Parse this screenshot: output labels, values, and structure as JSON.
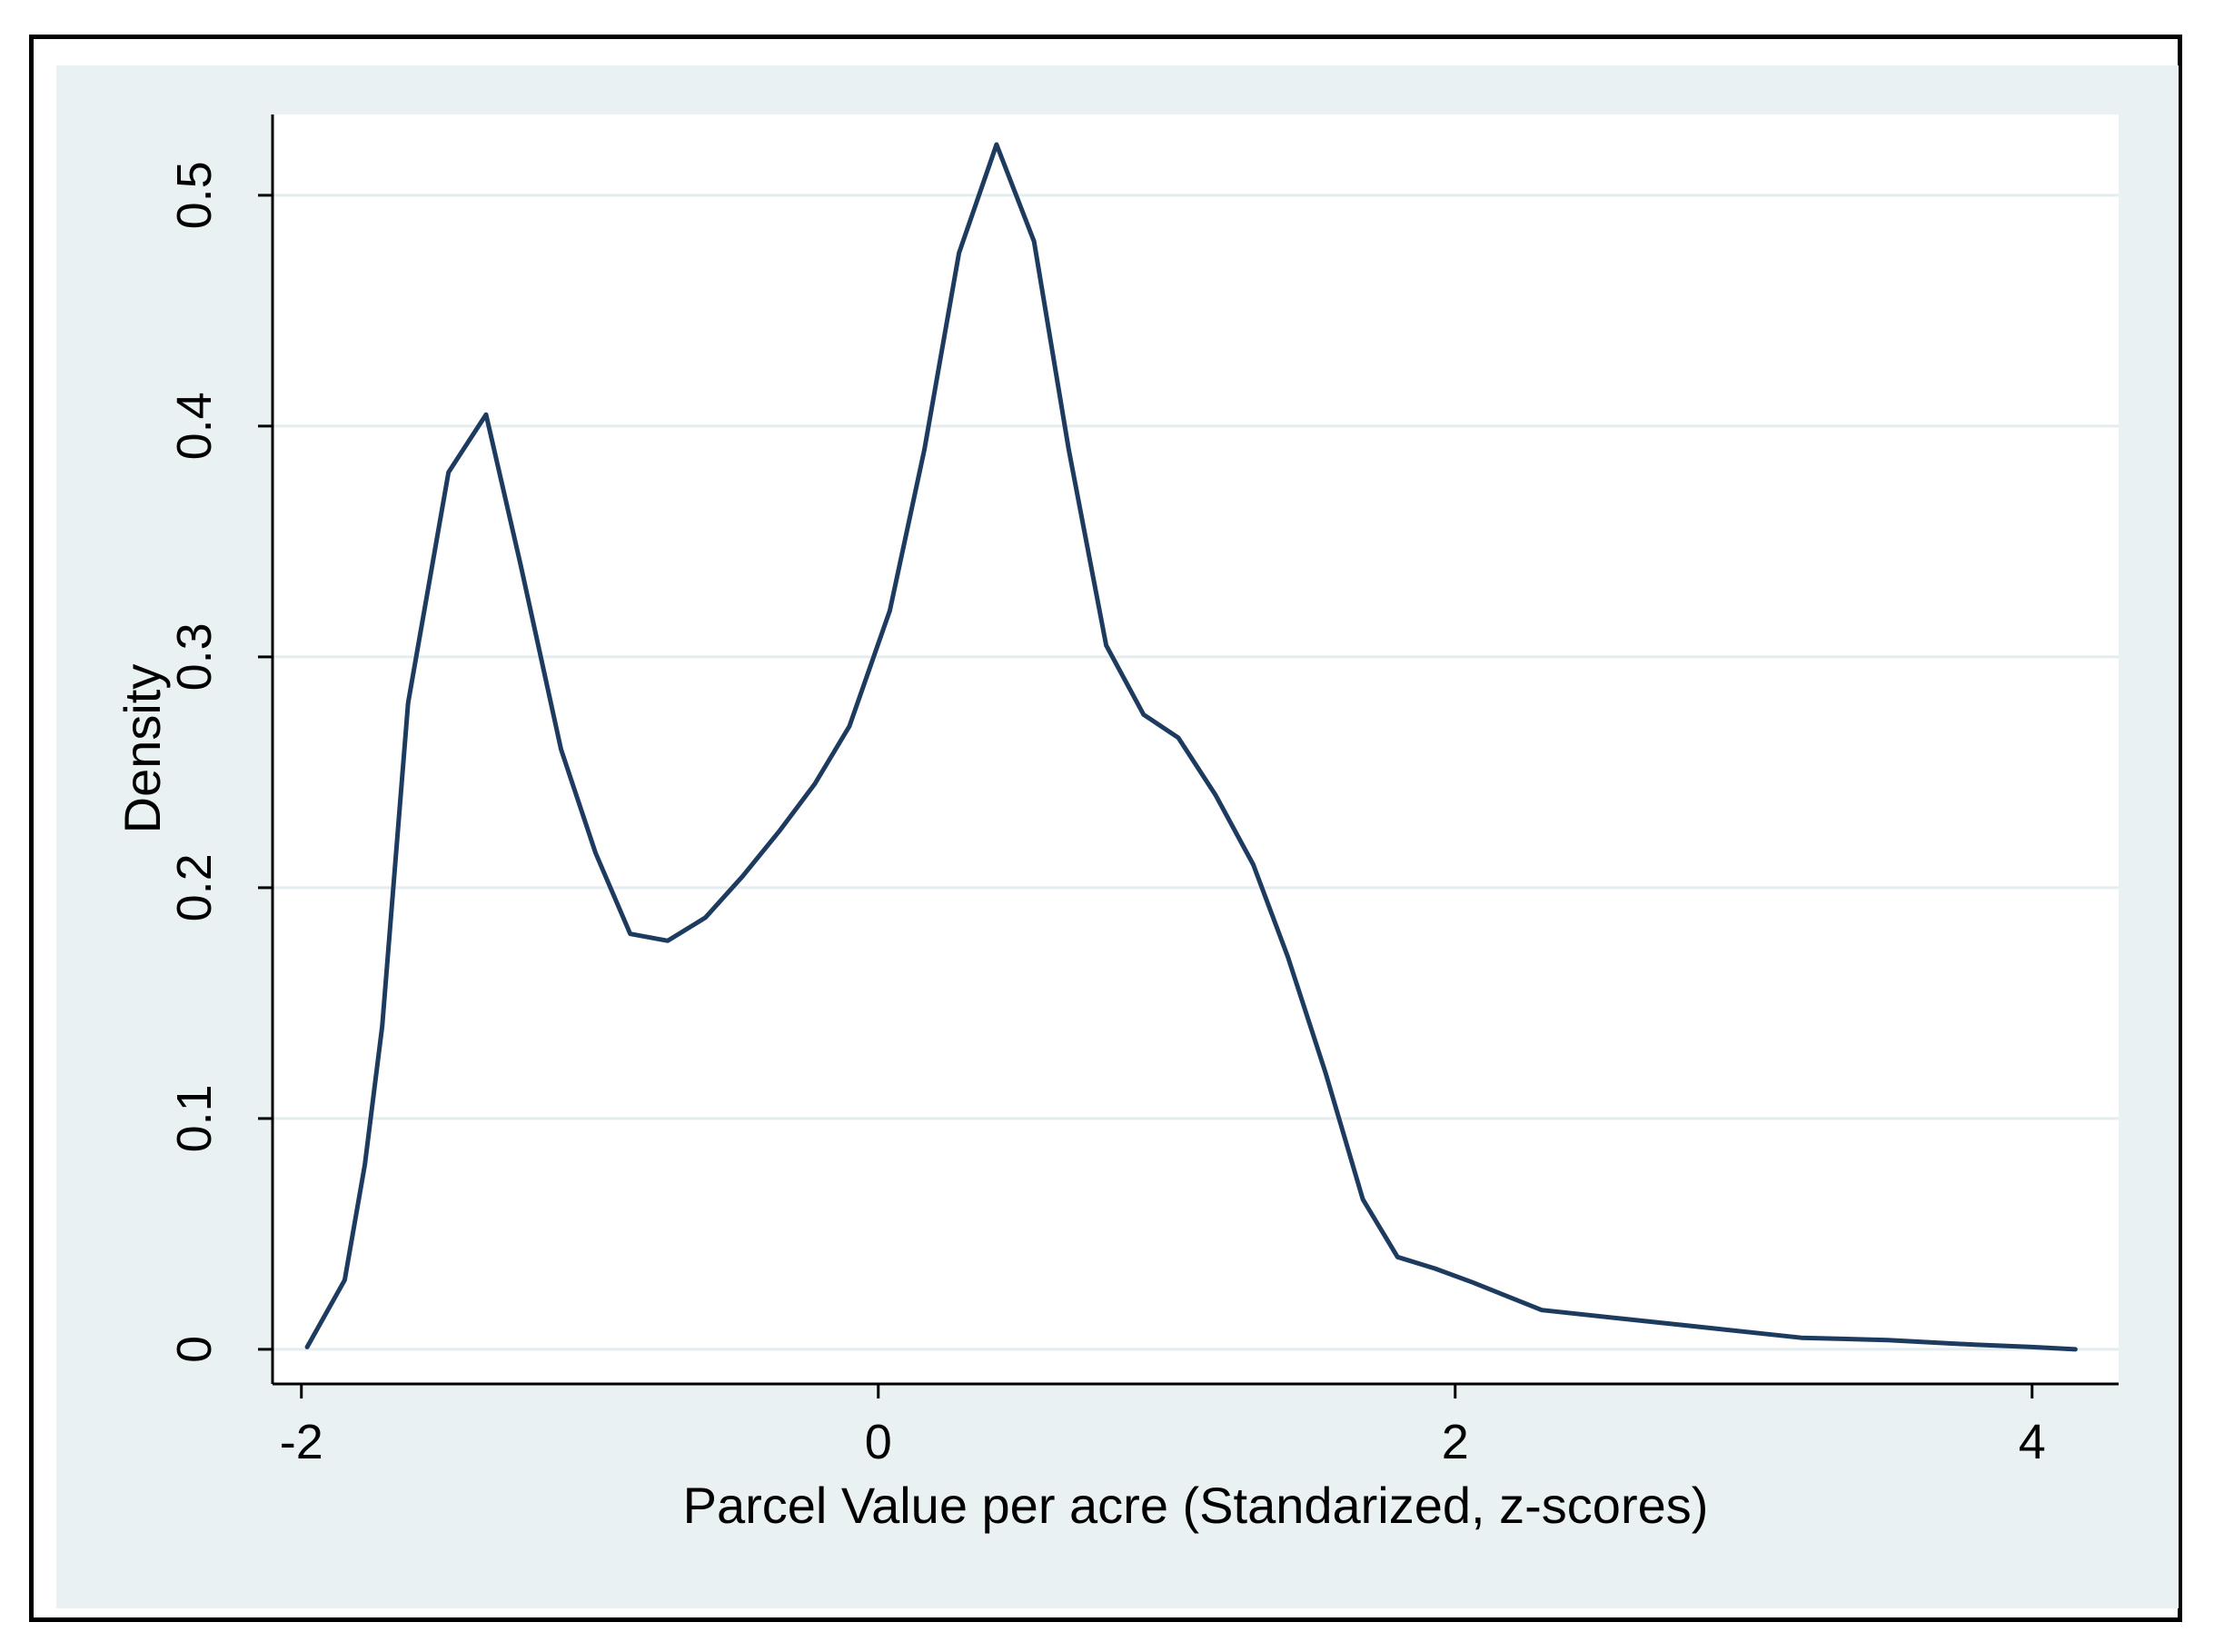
{
  "chart_data": {
    "type": "line",
    "title": "",
    "xlabel": "Parcel Value per acre (Standarized, z-scores)",
    "ylabel": "Density",
    "xlim": [
      -2.1,
      4.3
    ],
    "ylim": [
      -0.015,
      0.535
    ],
    "x_ticks": [
      -2,
      0,
      2,
      4
    ],
    "x_tick_labels": [
      "-2",
      "0",
      "2",
      "4"
    ],
    "y_ticks": [
      0,
      0.1,
      0.2,
      0.3,
      0.4,
      0.5
    ],
    "y_tick_labels": [
      "0",
      "0.1",
      "0.2",
      "0.3",
      "0.4",
      "0.5"
    ],
    "grid": true,
    "legend": "none",
    "colors": {
      "line": "#1d3a5f",
      "plot_background": "#ffffff",
      "outer_background": "#eaf1f3",
      "grid": "#e3ecef",
      "frame": "#000000"
    },
    "series": [
      {
        "x": [
          -1.98,
          -1.85,
          -1.78,
          -1.72,
          -1.63,
          -1.49,
          -1.36,
          -1.24,
          -1.1,
          -0.98,
          -0.86,
          -0.73,
          -0.6,
          -0.47,
          -0.34,
          -0.22,
          -0.1,
          0.04,
          0.16,
          0.28,
          0.41,
          0.54,
          0.66,
          0.79,
          0.92,
          1.04,
          1.17,
          1.3,
          1.42,
          1.55,
          1.68,
          1.8,
          1.93,
          2.06,
          2.3,
          2.6,
          2.9,
          3.2,
          3.5,
          3.8,
          4.0,
          4.15
        ],
        "y": [
          0.001,
          0.03,
          0.08,
          0.14,
          0.28,
          0.38,
          0.405,
          0.34,
          0.26,
          0.215,
          0.18,
          0.177,
          0.187,
          0.205,
          0.225,
          0.245,
          0.27,
          0.32,
          0.39,
          0.475,
          0.522,
          0.48,
          0.39,
          0.305,
          0.275,
          0.265,
          0.24,
          0.21,
          0.17,
          0.12,
          0.065,
          0.04,
          0.035,
          0.029,
          0.017,
          0.013,
          0.009,
          0.005,
          0.004,
          0.002,
          0.001,
          0.0
        ]
      }
    ]
  }
}
